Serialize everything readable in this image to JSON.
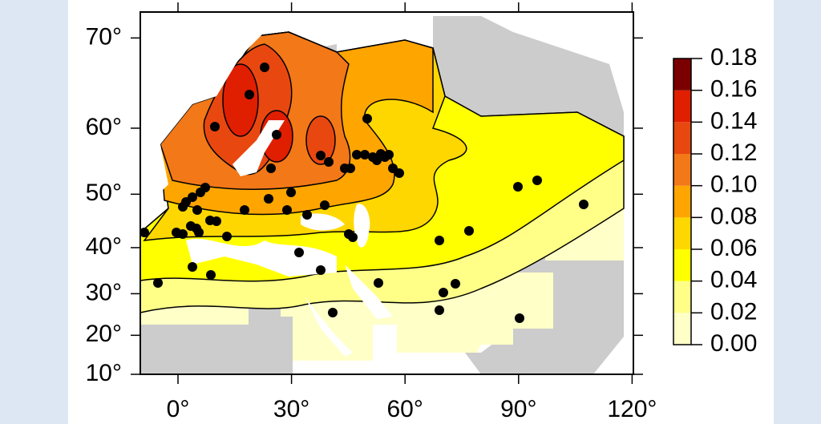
{
  "map": {
    "lat_ticks": [
      {
        "value": 70,
        "label": "70°"
      },
      {
        "value": 60,
        "label": "60°"
      },
      {
        "value": 50,
        "label": "50°"
      },
      {
        "value": 40,
        "label": "40°"
      },
      {
        "value": 30,
        "label": "30°"
      },
      {
        "value": 20,
        "label": "20°"
      },
      {
        "value": 10,
        "label": "10°"
      }
    ],
    "lon_ticks": [
      {
        "value": 0,
        "label": "0°"
      },
      {
        "value": 30,
        "label": "30°"
      },
      {
        "value": 60,
        "label": "60°"
      },
      {
        "value": 90,
        "label": "90°"
      },
      {
        "value": 120,
        "label": "120°"
      }
    ],
    "colorbar": {
      "ticks": [
        {
          "value": 0,
          "label": "0.00"
        },
        {
          "value": 0.02,
          "label": "0.02"
        },
        {
          "value": 0.04,
          "label": "0.04"
        },
        {
          "value": 0.06,
          "label": "0.06"
        },
        {
          "value": 0.08,
          "label": "0.08"
        },
        {
          "value": 0.1,
          "label": "0.10"
        },
        {
          "value": 0.12,
          "label": "0.12"
        },
        {
          "value": 0.14,
          "label": "0.14"
        },
        {
          "value": 0.16,
          "label": "0.16"
        },
        {
          "value": 0.18,
          "label": "0.18"
        }
      ],
      "colors": [
        "#ffffc8",
        "#ffff88",
        "#ffff00",
        "#ffd700",
        "#ffa500",
        "#f27818",
        "#e84810",
        "#e01e00",
        "#7a0000"
      ]
    }
  }
}
